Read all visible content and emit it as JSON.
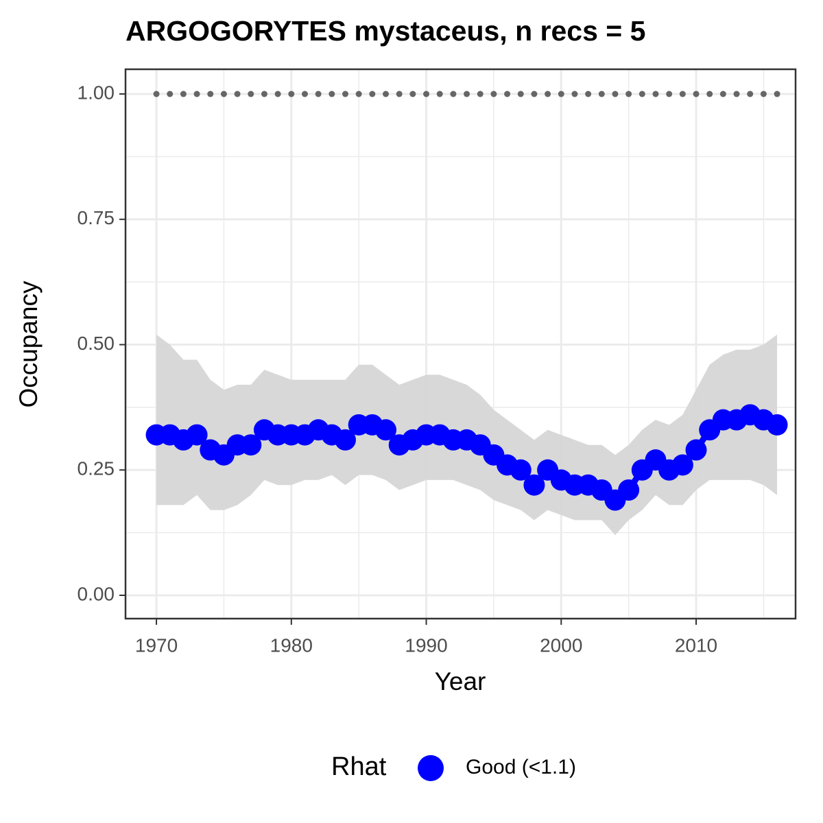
{
  "chart_data": {
    "type": "line",
    "title": "ARGOGORYTES mystaceus, n recs = 5",
    "x_label": "Year",
    "y_label": "Occupancy",
    "x": [
      1970,
      1971,
      1972,
      1973,
      1974,
      1975,
      1976,
      1977,
      1978,
      1979,
      1980,
      1981,
      1982,
      1983,
      1984,
      1985,
      1986,
      1987,
      1988,
      1989,
      1990,
      1991,
      1992,
      1993,
      1994,
      1995,
      1996,
      1997,
      1998,
      1999,
      2000,
      2001,
      2002,
      2003,
      2004,
      2005,
      2006,
      2007,
      2008,
      2009,
      2010,
      2011,
      2012,
      2013,
      2014,
      2015,
      2016
    ],
    "series": [
      {
        "name": "Good (<1.1)",
        "color": "#0000ff",
        "values": [
          0.32,
          0.32,
          0.31,
          0.32,
          0.29,
          0.28,
          0.3,
          0.3,
          0.33,
          0.32,
          0.32,
          0.32,
          0.33,
          0.32,
          0.31,
          0.34,
          0.34,
          0.33,
          0.3,
          0.31,
          0.32,
          0.32,
          0.31,
          0.31,
          0.3,
          0.28,
          0.26,
          0.25,
          0.22,
          0.25,
          0.23,
          0.22,
          0.22,
          0.21,
          0.19,
          0.21,
          0.25,
          0.27,
          0.25,
          0.26,
          0.29,
          0.33,
          0.35,
          0.35,
          0.36,
          0.35,
          0.34
        ]
      }
    ],
    "ribbon": {
      "color": "#d6d6d6",
      "upper": [
        0.52,
        0.5,
        0.47,
        0.47,
        0.43,
        0.41,
        0.42,
        0.42,
        0.45,
        0.44,
        0.43,
        0.43,
        0.43,
        0.43,
        0.43,
        0.46,
        0.46,
        0.44,
        0.42,
        0.43,
        0.44,
        0.44,
        0.43,
        0.42,
        0.4,
        0.37,
        0.35,
        0.33,
        0.31,
        0.33,
        0.32,
        0.31,
        0.3,
        0.3,
        0.28,
        0.3,
        0.33,
        0.35,
        0.34,
        0.36,
        0.41,
        0.46,
        0.48,
        0.49,
        0.49,
        0.5,
        0.52
      ],
      "lower": [
        0.18,
        0.18,
        0.18,
        0.2,
        0.17,
        0.17,
        0.18,
        0.2,
        0.23,
        0.22,
        0.22,
        0.23,
        0.23,
        0.24,
        0.22,
        0.24,
        0.24,
        0.23,
        0.21,
        0.22,
        0.23,
        0.23,
        0.23,
        0.22,
        0.21,
        0.19,
        0.18,
        0.17,
        0.15,
        0.17,
        0.16,
        0.15,
        0.15,
        0.15,
        0.12,
        0.15,
        0.17,
        0.2,
        0.18,
        0.18,
        0.21,
        0.23,
        0.23,
        0.23,
        0.23,
        0.22,
        0.2
      ]
    },
    "reference": {
      "color": "#666666",
      "values": [
        1,
        1,
        1,
        1,
        1,
        1,
        1,
        1,
        1,
        1,
        1,
        1,
        1,
        1,
        1,
        1,
        1,
        1,
        1,
        1,
        1,
        1,
        1,
        1,
        1,
        1,
        1,
        1,
        1,
        1,
        1,
        1,
        1,
        1,
        1,
        1,
        1,
        1,
        1,
        1,
        1,
        1,
        1,
        1,
        1,
        1,
        1
      ]
    },
    "xlim": [
      1967.71,
      2017.37
    ],
    "ylim": [
      -0.0465,
      1.0493
    ],
    "xticks": [
      1970,
      1980,
      1990,
      2000,
      2010
    ],
    "minor_xticks": [
      1975,
      1985,
      1995,
      2005,
      2015
    ],
    "yticks": [
      {
        "value": 0,
        "label": "0.00"
      },
      {
        "value": 0.25,
        "label": "0.25"
      },
      {
        "value": 0.5,
        "label": "0.50"
      },
      {
        "value": 0.75,
        "label": "0.75"
      },
      {
        "value": 1,
        "label": "1.00"
      }
    ],
    "minor_yticks": [
      0.125,
      0.375,
      0.625,
      0.875
    ],
    "grid": true,
    "legend_title": "Rhat",
    "legend": "bottom"
  }
}
